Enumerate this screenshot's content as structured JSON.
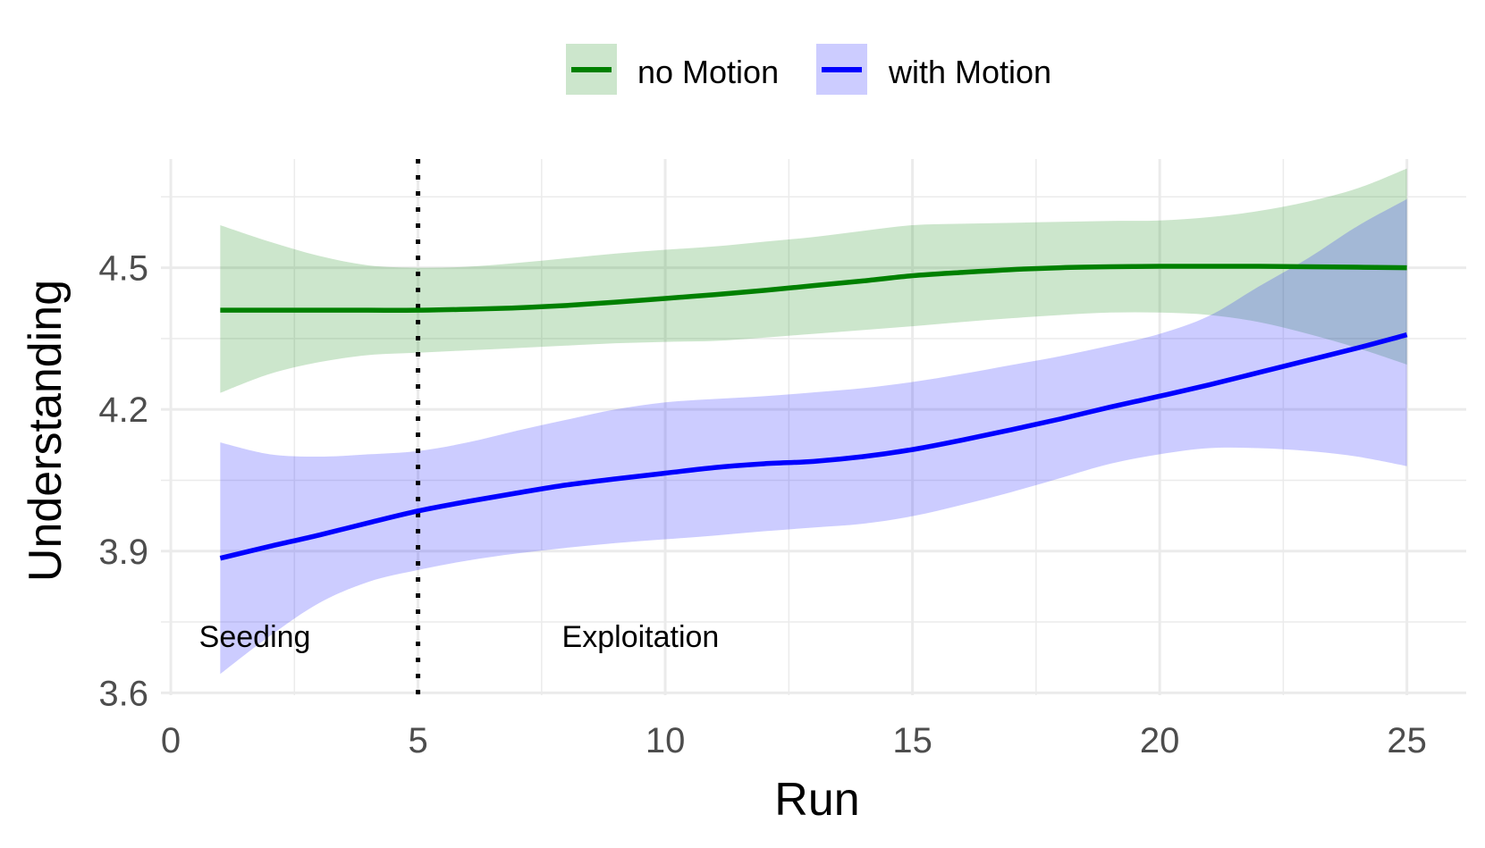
{
  "chart_data": {
    "type": "line",
    "xlabel": "Run",
    "ylabel": "Understanding",
    "xlim": [
      -0.2,
      26.2
    ],
    "ylim": [
      3.595,
      4.73
    ],
    "x_ticks": [
      0,
      5,
      10,
      15,
      20,
      25
    ],
    "x_tick_labels": [
      "0",
      "5",
      "10",
      "15",
      "20",
      "25"
    ],
    "y_ticks": [
      3.6,
      3.9,
      4.2,
      4.5
    ],
    "y_tick_labels": [
      "3.6",
      "3.9",
      "4.2",
      "4.5"
    ],
    "grid": true,
    "legend_position": "top",
    "vline": {
      "x": 5,
      "style": "dotted",
      "color": "#000000"
    },
    "annotations": [
      {
        "text": "Seeding",
        "x": 1.7,
        "y": 3.72
      },
      {
        "text": "Exploitation",
        "x": 9.5,
        "y": 3.72
      }
    ],
    "series": [
      {
        "name": "no Motion",
        "color": "#008000",
        "fill": "#008000",
        "x": [
          1,
          2,
          3,
          4,
          5,
          6,
          7,
          8,
          9,
          10,
          11,
          12,
          13,
          14,
          15,
          16,
          17,
          18,
          19,
          20,
          21,
          22,
          23,
          24,
          25
        ],
        "y": [
          4.41,
          4.41,
          4.41,
          4.41,
          4.41,
          4.412,
          4.415,
          4.42,
          4.427,
          4.435,
          4.443,
          4.452,
          4.462,
          4.472,
          4.483,
          4.49,
          4.496,
          4.5,
          4.502,
          4.503,
          4.503,
          4.503,
          4.502,
          4.501,
          4.5
        ],
        "lower": [
          4.235,
          4.275,
          4.3,
          4.315,
          4.32,
          4.325,
          4.33,
          4.335,
          4.34,
          4.343,
          4.345,
          4.352,
          4.36,
          4.368,
          4.376,
          4.385,
          4.393,
          4.4,
          4.405,
          4.405,
          4.4,
          4.385,
          4.36,
          4.33,
          4.295
        ],
        "upper": [
          4.59,
          4.555,
          4.525,
          4.505,
          4.5,
          4.502,
          4.51,
          4.52,
          4.53,
          4.538,
          4.545,
          4.555,
          4.565,
          4.578,
          4.59,
          4.593,
          4.595,
          4.597,
          4.599,
          4.6,
          4.607,
          4.62,
          4.64,
          4.668,
          4.71
        ]
      },
      {
        "name": "with Motion",
        "color": "#0000ff",
        "fill": "#0000ff",
        "x": [
          1,
          2,
          3,
          4,
          5,
          6,
          7,
          8,
          9,
          10,
          11,
          12,
          13,
          14,
          15,
          16,
          17,
          18,
          19,
          20,
          21,
          22,
          23,
          24,
          25
        ],
        "y": [
          3.885,
          3.91,
          3.934,
          3.96,
          3.985,
          4.005,
          4.023,
          4.04,
          4.053,
          4.065,
          4.077,
          4.085,
          4.09,
          4.1,
          4.115,
          4.135,
          4.157,
          4.18,
          4.205,
          4.228,
          4.252,
          4.278,
          4.304,
          4.33,
          4.358
        ],
        "lower": [
          3.64,
          3.72,
          3.79,
          3.835,
          3.86,
          3.88,
          3.895,
          3.907,
          3.917,
          3.925,
          3.933,
          3.942,
          3.95,
          3.958,
          3.974,
          3.998,
          4.025,
          4.055,
          4.085,
          4.105,
          4.118,
          4.118,
          4.112,
          4.1,
          4.08
        ],
        "upper": [
          4.13,
          4.105,
          4.1,
          4.105,
          4.112,
          4.13,
          4.155,
          4.178,
          4.2,
          4.215,
          4.222,
          4.228,
          4.236,
          4.245,
          4.258,
          4.275,
          4.294,
          4.313,
          4.335,
          4.36,
          4.398,
          4.46,
          4.52,
          4.588,
          4.645
        ]
      }
    ]
  }
}
